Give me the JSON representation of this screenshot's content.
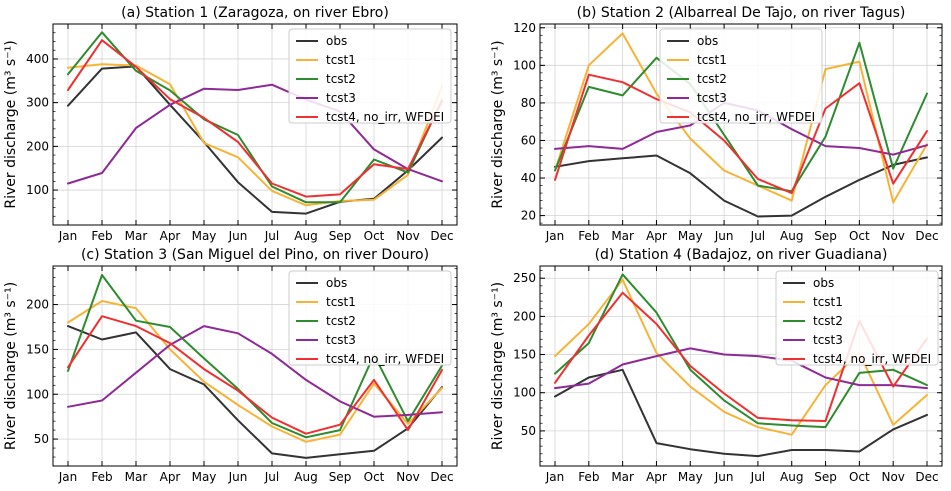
{
  "months": [
    "Jan",
    "Feb",
    "Mar",
    "Apr",
    "May",
    "Jun",
    "Jul",
    "Aug",
    "Sep",
    "Oct",
    "Nov",
    "Dec"
  ],
  "colors": {
    "obs": "#333333",
    "tcst1": "#f7b336",
    "tcst2": "#2e8b2e",
    "tcst3": "#8e2a96",
    "tcst4": "#ee3030"
  },
  "chart_data": [
    {
      "type": "line",
      "title": "(a) Station 1 (Zaragoza, on river Ebro)",
      "ylabel": "River discharge (m³ s⁻¹)",
      "ylim": [
        20,
        480
      ],
      "yticks": [
        100,
        200,
        300,
        400
      ],
      "grid": true,
      "legend": "top-right",
      "series": [
        {
          "name": "obs",
          "values": [
            293,
            378,
            383,
            295,
            210,
            118,
            50,
            46,
            73,
            80,
            145,
            220
          ]
        },
        {
          "name": "tcst1",
          "values": [
            380,
            388,
            385,
            342,
            208,
            175,
            98,
            65,
            75,
            78,
            135,
            338
          ]
        },
        {
          "name": "tcst2",
          "values": [
            365,
            461,
            373,
            328,
            262,
            226,
            108,
            72,
            72,
            170,
            140,
            306
          ]
        },
        {
          "name": "tcst3",
          "values": [
            115,
            139,
            242,
            295,
            332,
            329,
            341,
            307,
            280,
            193,
            148,
            120
          ]
        },
        {
          "name": "tcst4, no_irr, WFDEI",
          "values": [
            329,
            443,
            382,
            308,
            265,
            210,
            115,
            85,
            90,
            159,
            148,
            303
          ]
        }
      ]
    },
    {
      "type": "line",
      "title": "(b) Station 2 (Albarreal De Tajo, on river Tagus)",
      "ylabel": "River discharge (m³ s⁻¹)",
      "ylim": [
        15,
        122
      ],
      "yticks": [
        20,
        40,
        60,
        80,
        100,
        120
      ],
      "grid": true,
      "legend": "top-left",
      "series": [
        {
          "name": "obs",
          "values": [
            46,
            49,
            50.5,
            52,
            42.5,
            28,
            19.5,
            20,
            30,
            39,
            47,
            51
          ]
        },
        {
          "name": "tcst1",
          "values": [
            44,
            100,
            117,
            85,
            61,
            44,
            36,
            28,
            98,
            102,
            27,
            58
          ]
        },
        {
          "name": "tcst2",
          "values": [
            44,
            88.5,
            84,
            104,
            90,
            63,
            36,
            33,
            62,
            112,
            45,
            85
          ]
        },
        {
          "name": "tcst3",
          "values": [
            55.5,
            57,
            55.5,
            64.5,
            68,
            80,
            76,
            66,
            57,
            56,
            52.5,
            57.5
          ]
        },
        {
          "name": "tcst4, no_irr, WFDEI",
          "values": [
            39,
            95,
            91,
            82,
            75,
            60,
            39.5,
            32,
            77,
            90.5,
            37,
            65
          ]
        }
      ]
    },
    {
      "type": "line",
      "title": "(c) Station 3 (San Miguel del Pino, on river Douro)",
      "ylabel": "River discharge (m³ s⁻¹)",
      "ylim": [
        20,
        243
      ],
      "yticks": [
        50,
        100,
        150,
        200
      ],
      "grid": true,
      "legend": "top-right",
      "series": [
        {
          "name": "obs",
          "values": [
            176,
            161,
            169,
            128,
            111,
            71,
            34,
            29,
            33,
            37,
            62,
            108
          ]
        },
        {
          "name": "tcst1",
          "values": [
            180,
            204,
            196,
            150,
            114,
            88,
            64,
            47,
            55,
            112,
            67,
            107
          ]
        },
        {
          "name": "tcst2",
          "values": [
            126,
            233,
            182,
            175,
            140,
            106,
            68,
            52,
            60,
            144,
            70,
            132
          ]
        },
        {
          "name": "tcst3",
          "values": [
            86,
            93,
            124,
            155,
            176,
            168,
            145,
            116,
            92,
            75,
            77,
            80
          ]
        },
        {
          "name": "tcst4, no_irr, WFDEI",
          "values": [
            130,
            187,
            176,
            157,
            128,
            104,
            74,
            56,
            66,
            116,
            60,
            127
          ]
        }
      ]
    },
    {
      "type": "line",
      "title": "(d) Station 4 (Badajoz, on river Guadiana)",
      "ylabel": "River discharge (m³ s⁻¹)",
      "ylim": [
        4,
        266
      ],
      "yticks": [
        50,
        100,
        150,
        200,
        250
      ],
      "grid": true,
      "legend": "top-right",
      "series": [
        {
          "name": "obs",
          "values": [
            95,
            120,
            130,
            34,
            26,
            20,
            17,
            25,
            25,
            23,
            52,
            71
          ]
        },
        {
          "name": "tcst1",
          "values": [
            148,
            190,
            248,
            152,
            108,
            75,
            55,
            45,
            110,
            152,
            58,
            97
          ]
        },
        {
          "name": "tcst2",
          "values": [
            125,
            165,
            255,
            205,
            130,
            90,
            60,
            57,
            55,
            126,
            130,
            110
          ]
        },
        {
          "name": "tcst3",
          "values": [
            106,
            112,
            137,
            148,
            158,
            150,
            148,
            142,
            120,
            110,
            110,
            106
          ]
        },
        {
          "name": "tcst4, no_irr, WFDEI",
          "values": [
            113,
            175,
            231,
            190,
            135,
            99,
            67,
            64,
            63,
            194,
            108,
            171
          ]
        }
      ]
    }
  ]
}
